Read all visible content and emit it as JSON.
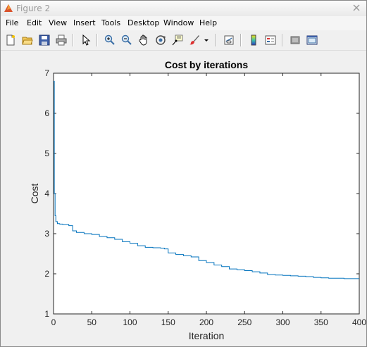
{
  "window": {
    "title": "Figure 2"
  },
  "menu": [
    "File",
    "Edit",
    "View",
    "Insert",
    "Tools",
    "Desktop",
    "Window",
    "Help"
  ],
  "toolbar": {
    "icons": [
      "new-figure-icon",
      "open-file-icon",
      "save-icon",
      "print-icon",
      "pointer-icon",
      "zoom-in-icon",
      "zoom-out-icon",
      "pan-hand-icon",
      "rotate-3d-icon",
      "data-cursor-icon",
      "brush-icon",
      "brush-dropdown-icon",
      "link-plot-icon",
      "colorbar-icon",
      "legend-icon",
      "hide-plot-tools-icon",
      "show-plot-tools-icon"
    ]
  },
  "chart_data": {
    "type": "line",
    "title": "Cost by iterations",
    "xlabel": "Iteration",
    "ylabel": "Cost",
    "xlim": [
      0,
      400
    ],
    "ylim": [
      1,
      7
    ],
    "xticks": [
      0,
      50,
      100,
      150,
      200,
      250,
      300,
      350,
      400
    ],
    "yticks": [
      1,
      2,
      3,
      4,
      5,
      6,
      7
    ],
    "grid": false,
    "line_color": "#0072bd",
    "series": [
      {
        "x": [
          0,
          1,
          2,
          3,
          5,
          8,
          12,
          20,
          25,
          30,
          40,
          50,
          60,
          70,
          80,
          90,
          100,
          110,
          120,
          130,
          140,
          145,
          150,
          160,
          170,
          180,
          190,
          200,
          210,
          220,
          230,
          240,
          250,
          260,
          270,
          280,
          290,
          300,
          310,
          320,
          330,
          340,
          350,
          360,
          370,
          380,
          390,
          400
        ],
        "y": [
          6.8,
          4.0,
          3.45,
          3.3,
          3.25,
          3.24,
          3.23,
          3.2,
          3.07,
          3.03,
          3.0,
          2.98,
          2.93,
          2.9,
          2.86,
          2.8,
          2.76,
          2.7,
          2.66,
          2.65,
          2.64,
          2.62,
          2.52,
          2.48,
          2.45,
          2.42,
          2.33,
          2.28,
          2.22,
          2.18,
          2.12,
          2.1,
          2.08,
          2.05,
          2.02,
          1.98,
          1.97,
          1.96,
          1.95,
          1.94,
          1.93,
          1.91,
          1.9,
          1.89,
          1.89,
          1.88,
          1.88,
          1.88
        ]
      }
    ]
  }
}
